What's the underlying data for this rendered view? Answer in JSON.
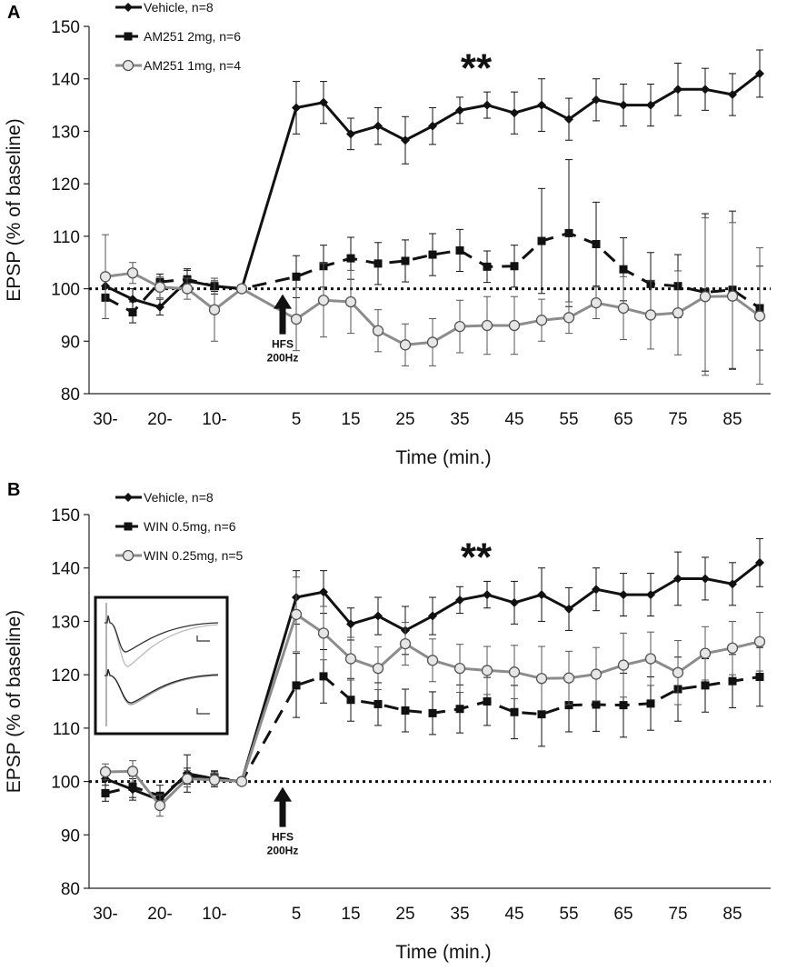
{
  "chart_data": [
    {
      "panel_label": "A",
      "type": "line",
      "ylabel": "EPSP (% of baseline)",
      "xlabel": "Time (min.)",
      "ylim": [
        80,
        150
      ],
      "yticks": [
        80,
        90,
        100,
        110,
        120,
        130,
        140,
        150
      ],
      "xlim": [
        -33,
        92
      ],
      "x_ticks": [
        {
          "x": -30,
          "label": "30-"
        },
        {
          "x": -20,
          "label": "20-"
        },
        {
          "x": -10,
          "label": "10-"
        },
        {
          "x": 5,
          "label": "5"
        },
        {
          "x": 15,
          "label": "15"
        },
        {
          "x": 25,
          "label": "25"
        },
        {
          "x": 35,
          "label": "35"
        },
        {
          "x": 45,
          "label": "45"
        },
        {
          "x": 55,
          "label": "55"
        },
        {
          "x": 65,
          "label": "65"
        },
        {
          "x": 75,
          "label": "75"
        },
        {
          "x": 85,
          "label": "85"
        }
      ],
      "baseline": 100,
      "annotation_stars": {
        "text": "**",
        "x": 38,
        "y": 140
      },
      "hfs_marker": {
        "x": 2.5,
        "label_line1": "HFS",
        "label_line2": "200Hz"
      },
      "x": [
        -30,
        -25,
        -20,
        -15,
        -10,
        -5,
        0,
        5,
        10,
        15,
        20,
        25,
        30,
        35,
        40,
        45,
        50,
        55,
        60,
        65,
        70,
        75,
        80,
        85,
        90
      ],
      "series": [
        {
          "name": "Vehicle, n=8",
          "style": "solid",
          "marker": "diamond",
          "color": "#111111",
          "values": [
            100.5,
            98,
            96.5,
            101.5,
            100.5,
            100,
            null,
            134.5,
            135.5,
            129.5,
            131,
            128.3,
            131,
            134,
            135,
            133.5,
            135,
            132.3,
            136,
            135,
            135,
            138,
            138,
            137,
            141
          ],
          "err": [
            2,
            2,
            1.5,
            2,
            1.5,
            0,
            null,
            5,
            4,
            3,
            3.5,
            4.5,
            3.5,
            2.5,
            2.5,
            4,
            5,
            4,
            4,
            4,
            4,
            5,
            4,
            4,
            4.5
          ]
        },
        {
          "name": "AM251 2mg, n=6",
          "style": "dashed",
          "marker": "square",
          "color": "#111111",
          "values": [
            98.3,
            95.5,
            101.3,
            101.8,
            100.5,
            100,
            null,
            102.3,
            104.3,
            105.8,
            104.8,
            105.3,
            106.5,
            107.3,
            104.2,
            104.3,
            109.1,
            110.6,
            108.5,
            103.7,
            100.9,
            100.5,
            99.3,
            99.8,
            96.3
          ],
          "err": [
            4,
            2,
            1.5,
            2,
            1,
            0,
            null,
            4,
            4,
            4,
            4,
            4,
            4,
            4,
            3,
            4,
            10,
            14,
            8,
            6,
            6,
            6,
            15,
            15,
            8
          ]
        },
        {
          "name": "AM251 1mg, n=4",
          "style": "solid",
          "marker": "circle",
          "color": "#8c8c8c",
          "values": [
            102.3,
            103,
            100.3,
            100,
            96,
            100,
            null,
            94.2,
            97.8,
            97.5,
            92,
            89.3,
            89.8,
            92.8,
            93,
            93,
            94,
            94.5,
            97.3,
            96.3,
            95,
            95.4,
            98.5,
            98.6,
            94.8
          ],
          "err": [
            8,
            2,
            2,
            2,
            6,
            0,
            null,
            6,
            7,
            6,
            4,
            4,
            4.5,
            5,
            5.5,
            5.5,
            4,
            3,
            3,
            6,
            6.5,
            8,
            15,
            14,
            13
          ]
        }
      ]
    },
    {
      "panel_label": "B",
      "type": "line",
      "ylabel": "EPSP (% of baseline)",
      "xlabel": "Time (min.)",
      "ylim": [
        80,
        150
      ],
      "yticks": [
        80,
        90,
        100,
        110,
        120,
        130,
        140,
        150
      ],
      "xlim": [
        -33,
        92
      ],
      "x_ticks": [
        {
          "x": -30,
          "label": "30-"
        },
        {
          "x": -20,
          "label": "20-"
        },
        {
          "x": -10,
          "label": "10-"
        },
        {
          "x": 5,
          "label": "5"
        },
        {
          "x": 15,
          "label": "15"
        },
        {
          "x": 25,
          "label": "25"
        },
        {
          "x": 35,
          "label": "35"
        },
        {
          "x": 45,
          "label": "45"
        },
        {
          "x": 55,
          "label": "55"
        },
        {
          "x": 65,
          "label": "65"
        },
        {
          "x": 75,
          "label": "75"
        },
        {
          "x": 85,
          "label": "85"
        }
      ],
      "baseline": 100,
      "annotation_stars": {
        "text": "**",
        "x": 38,
        "y": 140
      },
      "hfs_marker": {
        "x": 2.5,
        "label_line1": "HFS",
        "label_line2": "200Hz"
      },
      "inset": "representative EPSP traces",
      "x": [
        -30,
        -25,
        -20,
        -15,
        -10,
        -5,
        0,
        5,
        10,
        15,
        20,
        25,
        30,
        35,
        40,
        45,
        50,
        55,
        60,
        65,
        70,
        75,
        80,
        85,
        90
      ],
      "series": [
        {
          "name": "Vehicle, n=8",
          "style": "solid",
          "marker": "diamond",
          "color": "#111111",
          "values": [
            100.5,
            98.5,
            96.5,
            101.5,
            100.5,
            100,
            null,
            134.5,
            135.5,
            129.5,
            131,
            128.3,
            131,
            134,
            135,
            133.5,
            135,
            132.3,
            136,
            135,
            135,
            138,
            138,
            137,
            141
          ],
          "err": [
            2,
            2,
            1.5,
            3.5,
            1.5,
            0,
            null,
            5,
            4,
            3,
            3.5,
            4.5,
            3.5,
            2.5,
            2.5,
            4,
            5,
            4,
            4,
            4,
            4,
            5,
            4,
            4,
            4.5
          ]
        },
        {
          "name": "WIN 0.5mg, n=6",
          "style": "dashed",
          "marker": "square",
          "color": "#111111",
          "values": [
            97.8,
            99,
            97.3,
            101,
            100.8,
            100,
            null,
            118,
            119.7,
            115.3,
            114.5,
            113.3,
            112.8,
            113.6,
            115,
            113,
            112.6,
            114.3,
            114.4,
            114.3,
            114.6,
            117.3,
            118,
            118.8,
            119.6
          ],
          "err": [
            1.5,
            2,
            2,
            1.5,
            1,
            0,
            null,
            6,
            5,
            4,
            4,
            4,
            4,
            4.5,
            4.5,
            5,
            6,
            5,
            5,
            6,
            5,
            6,
            5,
            5,
            5.5
          ]
        },
        {
          "name": "WIN 0.25mg, n=5",
          "style": "solid",
          "marker": "circle",
          "color": "#8c8c8c",
          "values": [
            101.8,
            101.9,
            95.5,
            100.5,
            100.3,
            100,
            null,
            131.3,
            127.8,
            123,
            121.2,
            125.8,
            122.7,
            121.2,
            120.8,
            120.5,
            119.3,
            119.4,
            120.1,
            121.8,
            123,
            120.4,
            124,
            125,
            126.2
          ],
          "err": [
            1.5,
            2,
            2,
            1.5,
            1,
            0,
            null,
            7,
            5,
            4,
            4,
            4,
            4,
            4.5,
            4.5,
            5,
            6,
            5,
            5,
            6,
            5,
            6,
            5,
            5,
            5.5
          ]
        }
      ]
    }
  ]
}
